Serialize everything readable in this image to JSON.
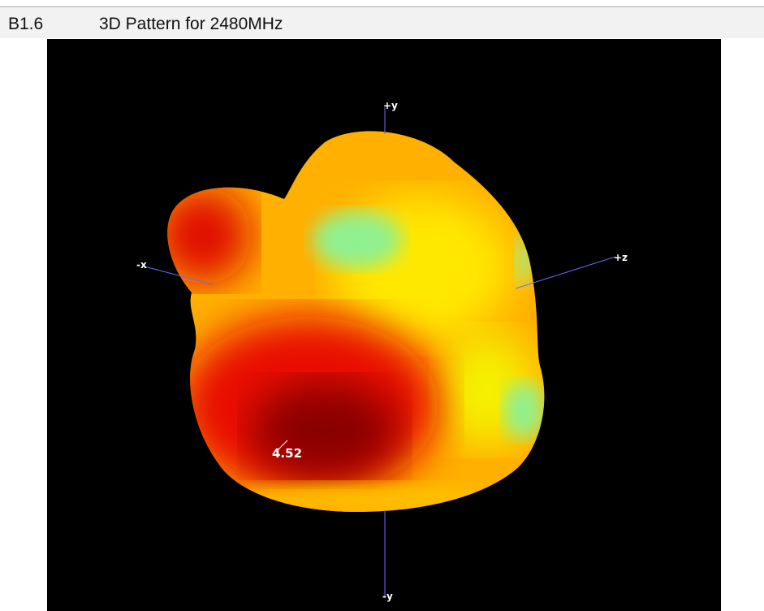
{
  "section": {
    "number": "B1.6",
    "title": "3D Pattern for 2480MHz"
  },
  "figure": {
    "axis_labels": {
      "plus_y": "+y",
      "minus_x": "-x",
      "plus_z": "+z",
      "minus_y": "-y"
    },
    "peak_label": "4.52"
  }
}
